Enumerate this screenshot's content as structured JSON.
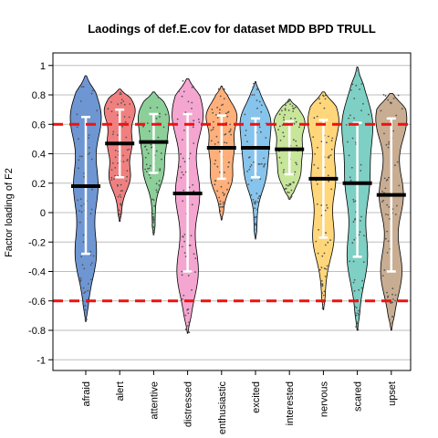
{
  "chart_data": {
    "type": "violin",
    "title": "Laodings of def.E.cov for dataset MDD BPD TRULL",
    "xlabel": "",
    "ylabel": "Factor loading of F2",
    "ylim": [
      -1.1,
      1.05
    ],
    "yticks": [
      1,
      0.8,
      0.6,
      0.4,
      0.2,
      0,
      -0.2,
      -0.4,
      -0.6,
      -0.8,
      -1
    ],
    "ytick_labels": [
      "1",
      "0.8",
      "0.6",
      "0.4",
      "0.2",
      "0",
      "-0.2",
      "-0.4",
      "-0.6",
      "-0.8",
      "-1"
    ],
    "grid": true,
    "reference_lines": [
      0.6,
      -0.6
    ],
    "reference_color": "#ee1111",
    "categories": [
      "afraid",
      "alert",
      "attentive",
      "distressed",
      "enthusiastic",
      "excited",
      "interested",
      "nervous",
      "scared",
      "upset"
    ],
    "colors": [
      "#6e96d2",
      "#f08080",
      "#8ccf99",
      "#f4a6d0",
      "#ffb07a",
      "#87c4ec",
      "#c8e69a",
      "#ffd77a",
      "#7ecfc4",
      "#c8ad92"
    ],
    "series": [
      {
        "name": "afraid",
        "median": 0.18,
        "ci_low": -0.28,
        "ci_high": 0.65,
        "min": -0.74,
        "max": 0.93
      },
      {
        "name": "alert",
        "median": 0.47,
        "ci_low": 0.24,
        "ci_high": 0.7,
        "min": -0.06,
        "max": 0.84
      },
      {
        "name": "attentive",
        "median": 0.48,
        "ci_low": 0.27,
        "ci_high": 0.67,
        "min": -0.15,
        "max": 0.82
      },
      {
        "name": "distressed",
        "median": 0.13,
        "ci_low": -0.4,
        "ci_high": 0.67,
        "min": -0.82,
        "max": 0.91
      },
      {
        "name": "enthusiastic",
        "median": 0.44,
        "ci_low": 0.23,
        "ci_high": 0.66,
        "min": -0.05,
        "max": 0.86
      },
      {
        "name": "excited",
        "median": 0.44,
        "ci_low": 0.24,
        "ci_high": 0.64,
        "min": -0.18,
        "max": 0.89
      },
      {
        "name": "interested",
        "median": 0.43,
        "ci_low": 0.26,
        "ci_high": 0.62,
        "min": 0.09,
        "max": 0.77
      },
      {
        "name": "nervous",
        "median": 0.23,
        "ci_low": -0.17,
        "ci_high": 0.63,
        "min": -0.66,
        "max": 0.82
      },
      {
        "name": "scared",
        "median": 0.2,
        "ci_low": -0.3,
        "ci_high": 0.61,
        "min": -0.8,
        "max": 0.99
      },
      {
        "name": "upset",
        "median": 0.12,
        "ci_low": -0.4,
        "ci_high": 0.64,
        "min": -0.8,
        "max": 0.81
      }
    ]
  }
}
